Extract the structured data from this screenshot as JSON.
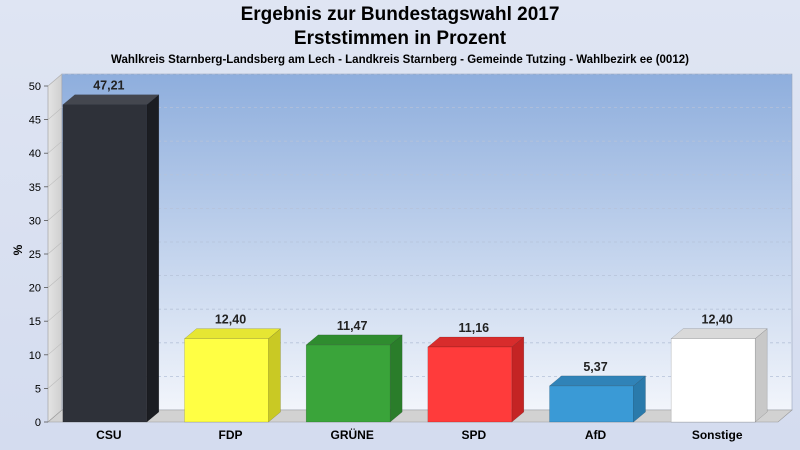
{
  "header": {
    "title_line1": "Ergebnis zur Bundestagswahl 2017",
    "title_line2": "Erststimmen in Prozent",
    "subtitle": "Wahlkreis Starnberg-Landsberg am Lech - Landkreis Starnberg - Gemeinde Tutzing - Wahlbezirk ee (0012)"
  },
  "chart_data": {
    "type": "bar",
    "title": "Ergebnis zur Bundestagswahl 2017",
    "subtitle": "Erststimmen in Prozent",
    "xlabel": "",
    "ylabel": "%",
    "ylim": [
      0,
      50
    ],
    "yticks": [
      0,
      5,
      10,
      15,
      20,
      25,
      30,
      35,
      40,
      45,
      50
    ],
    "grid": true,
    "categories": [
      "CSU",
      "FDP",
      "GRÜNE",
      "SPD",
      "AfD",
      "Sonstige"
    ],
    "values": [
      47.21,
      12.4,
      11.47,
      11.16,
      5.37,
      12.4
    ],
    "value_labels": [
      "47,21",
      "12,40",
      "11,47",
      "11,16",
      "5,37",
      "12,40"
    ],
    "colors": [
      "#2e3139",
      "#ffff44",
      "#3aa43a",
      "#ff3b3b",
      "#3a9ad6",
      "#ffffff"
    ],
    "side_colors": [
      "#1b1d22",
      "#c9c924",
      "#2a7d2a",
      "#c42424",
      "#2a7aab",
      "#c8c8c8"
    ],
    "top_colors": [
      "#44474f",
      "#e6e633",
      "#2f8c2f",
      "#d82c2c",
      "#3083b8",
      "#d9d9d9"
    ]
  }
}
